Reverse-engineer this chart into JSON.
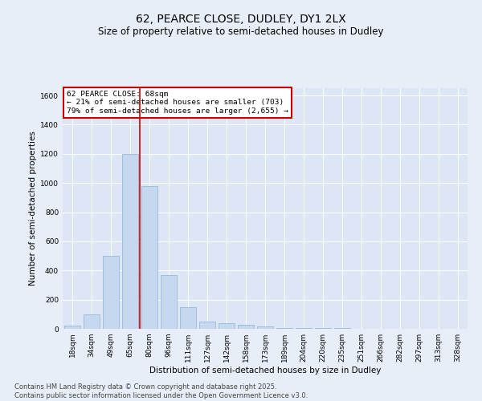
{
  "title": "62, PEARCE CLOSE, DUDLEY, DY1 2LX",
  "subtitle": "Size of property relative to semi-detached houses in Dudley",
  "xlabel": "Distribution of semi-detached houses by size in Dudley",
  "ylabel": "Number of semi-detached properties",
  "categories": [
    "18sqm",
    "34sqm",
    "49sqm",
    "65sqm",
    "80sqm",
    "96sqm",
    "111sqm",
    "127sqm",
    "142sqm",
    "158sqm",
    "173sqm",
    "189sqm",
    "204sqm",
    "220sqm",
    "235sqm",
    "251sqm",
    "266sqm",
    "282sqm",
    "297sqm",
    "313sqm",
    "328sqm"
  ],
  "values": [
    20,
    100,
    500,
    1200,
    980,
    370,
    150,
    50,
    40,
    30,
    15,
    5,
    5,
    8,
    3,
    2,
    2,
    2,
    1,
    1,
    1
  ],
  "bar_color": "#c5d8f0",
  "bar_edge_color": "#8aafd4",
  "vline_color": "#cc0000",
  "annotation_title": "62 PEARCE CLOSE: 68sqm",
  "annotation_line2": "← 21% of semi-detached houses are smaller (703)",
  "annotation_line3": "79% of semi-detached houses are larger (2,655) →",
  "annotation_box_color": "#cc0000",
  "annotation_fill": "#ffffff",
  "ylim": [
    0,
    1650
  ],
  "yticks": [
    0,
    200,
    400,
    600,
    800,
    1000,
    1200,
    1400,
    1600
  ],
  "footer_line1": "Contains HM Land Registry data © Crown copyright and database right 2025.",
  "footer_line2": "Contains public sector information licensed under the Open Government Licence v3.0.",
  "bg_color": "#e8eef8",
  "plot_bg_color": "#dce6f5",
  "grid_color": "#ffffff",
  "title_fontsize": 10,
  "subtitle_fontsize": 8.5,
  "axis_label_fontsize": 7.5,
  "tick_fontsize": 6.5,
  "annotation_fontsize": 6.8,
  "footer_fontsize": 6.0
}
